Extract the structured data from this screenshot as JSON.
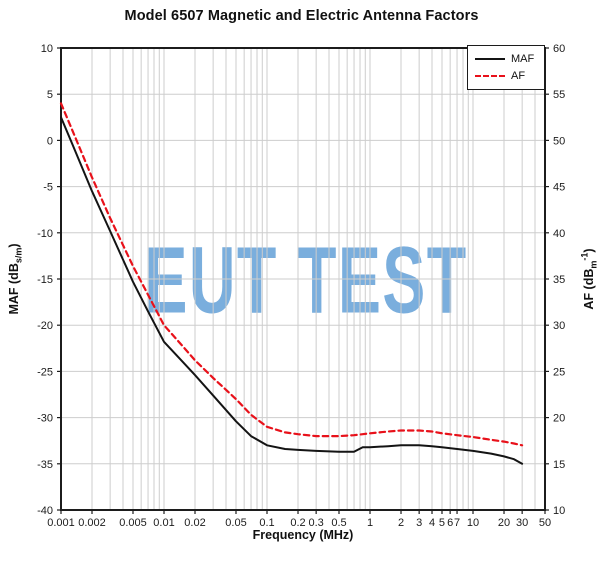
{
  "watermark": {
    "text": "EUT TEST",
    "color": "#7aaedd"
  },
  "legend": {
    "maf_label": "MAF",
    "af_label": "AF"
  },
  "axes": {
    "x": {
      "label": "Frequency (MHz)"
    },
    "y_left": {
      "label_pre": "MAF (dB",
      "label_sub": "s/m",
      "label_post": ")"
    },
    "y_right": {
      "label_pre": "AF (dB",
      "label_sub": "m",
      "label_sup": "-1",
      "label_post": ")"
    }
  },
  "chart_data": {
    "type": "line",
    "title": "Model 6507 Magnetic and Electric Antenna Factors",
    "xlabel": "Frequency (MHz)",
    "x_scale": "log",
    "xlim": [
      0.001,
      50
    ],
    "ylim_left": [
      -40,
      10
    ],
    "ylim_right": [
      10,
      60
    ],
    "grid": true,
    "legend_position": "top-right",
    "x_ticks": {
      "values": [
        0.001,
        0.002,
        0.005,
        0.01,
        0.02,
        0.05,
        0.1,
        0.2,
        0.3,
        0.5,
        1,
        2,
        3,
        4,
        5,
        6,
        7,
        10,
        20,
        30,
        50
      ],
      "labels": [
        "0.001",
        "0.002",
        "0.005",
        "0.01",
        "0.02",
        "0.05",
        "0.1",
        "0.2",
        "0.3",
        "0.5",
        "1",
        "2",
        "3",
        "4",
        "5",
        "6",
        "7",
        "10",
        "20",
        "30",
        "50"
      ]
    },
    "y_left_ticks": {
      "values": [
        10,
        5,
        0,
        -5,
        -10,
        -15,
        -20,
        -25,
        -30,
        -35,
        -40
      ],
      "labels": [
        "10",
        "5",
        "0",
        "-5",
        "-10",
        "-15",
        "-20",
        "-25",
        "-30",
        "-35",
        "-40"
      ]
    },
    "y_right_ticks": {
      "values": [
        60,
        55,
        50,
        45,
        40,
        35,
        30,
        25,
        20,
        15,
        10
      ],
      "labels": [
        "60",
        "55",
        "50",
        "45",
        "40",
        "35",
        "30",
        "25",
        "20",
        "15",
        "10"
      ]
    },
    "x": [
      0.001,
      0.0013,
      0.002,
      0.003,
      0.005,
      0.007,
      0.01,
      0.015,
      0.02,
      0.03,
      0.05,
      0.07,
      0.1,
      0.15,
      0.2,
      0.3,
      0.5,
      0.7,
      0.85,
      1,
      1.5,
      2,
      3,
      4,
      5,
      7,
      10,
      15,
      20,
      25,
      30
    ],
    "series": [
      {
        "name": "MAF",
        "axis": "left",
        "unit": "dB s/m",
        "color": "#141414",
        "line": "solid",
        "values": [
          2.5,
          -0.5,
          -5.5,
          -9.8,
          -15.3,
          -18.5,
          -21.8,
          -23.9,
          -25.4,
          -27.6,
          -30.4,
          -32.0,
          -33.0,
          -33.4,
          -33.5,
          -33.6,
          -33.7,
          -33.7,
          -33.2,
          -33.2,
          -33.1,
          -33.0,
          -33.0,
          -33.1,
          -33.2,
          -33.4,
          -33.6,
          -33.9,
          -34.2,
          -34.5,
          -35.0
        ]
      },
      {
        "name": "AF",
        "axis": "right",
        "unit": "dB m^-1",
        "color": "#e8111a",
        "line": "dashed",
        "values": [
          54.0,
          51.0,
          46.0,
          41.6,
          36.4,
          33.3,
          30.0,
          27.8,
          26.2,
          24.3,
          22.0,
          20.3,
          19.0,
          18.4,
          18.2,
          18.0,
          18.0,
          18.1,
          18.2,
          18.3,
          18.5,
          18.6,
          18.6,
          18.5,
          18.3,
          18.1,
          17.9,
          17.6,
          17.4,
          17.2,
          17.0
        ]
      }
    ]
  }
}
